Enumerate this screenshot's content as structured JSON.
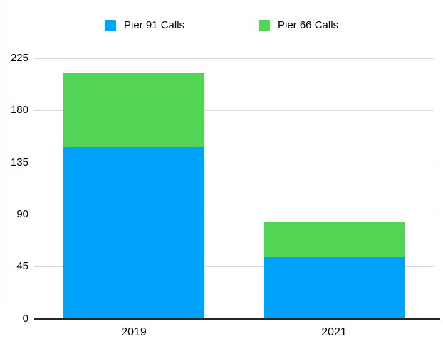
{
  "chart_data": {
    "type": "bar",
    "stacked": true,
    "categories": [
      "2019",
      "2021"
    ],
    "series": [
      {
        "name": "Pier 91 Calls",
        "color": "#00A2FA",
        "values": [
          148,
          53
        ]
      },
      {
        "name": "Pier 66 Calls",
        "color": "#52D455",
        "values": [
          64,
          30
        ]
      }
    ],
    "ylim": [
      0,
      225
    ],
    "yticks": [
      0,
      45,
      90,
      135,
      180,
      225
    ],
    "grid": true,
    "legend_position": "top",
    "gridline_color": "#d9d9d9",
    "axis_color": "#262626",
    "text_color": "#000000",
    "background_color": "#ffffff"
  }
}
